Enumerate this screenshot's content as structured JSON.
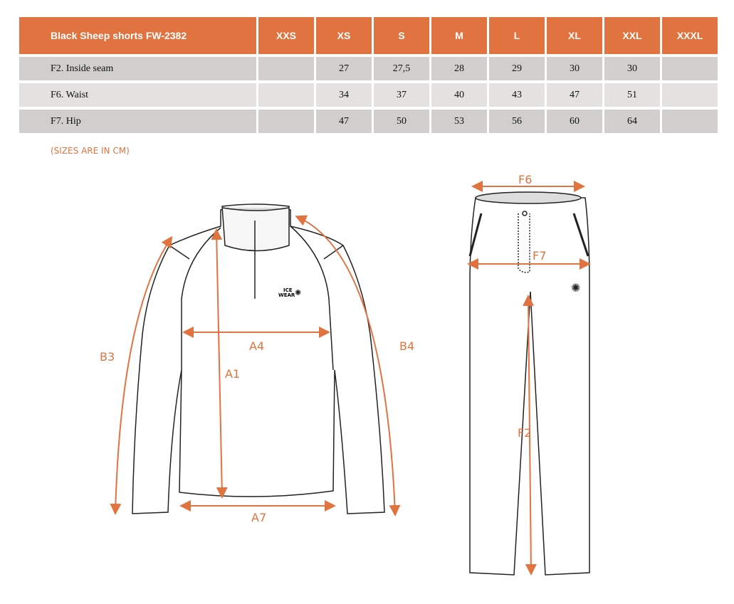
{
  "table": {
    "title": "Black Sheep shorts FW-2382",
    "sizes": [
      "XXS",
      "XS",
      "S",
      "M",
      "L",
      "XL",
      "XXL",
      "XXXL"
    ],
    "rows": [
      {
        "label": "F2. Inside seam",
        "values": [
          "",
          "27",
          "27,5",
          "28",
          "29",
          "30",
          "30",
          ""
        ]
      },
      {
        "label": "F6. Waist",
        "values": [
          "",
          "34",
          "37",
          "40",
          "43",
          "47",
          "51",
          ""
        ]
      },
      {
        "label": "F7. Hip",
        "values": [
          "",
          "47",
          "50",
          "53",
          "56",
          "60",
          "64",
          ""
        ]
      }
    ]
  },
  "note": "(SIZES ARE IN CM)",
  "diagram": {
    "accent_color": "#e0733f",
    "jacket_labels": [
      "B3",
      "A1",
      "A4",
      "A7",
      "B4"
    ],
    "pants_labels": [
      "F6",
      "F7",
      "F2"
    ],
    "logo": "ICE WEAR"
  }
}
